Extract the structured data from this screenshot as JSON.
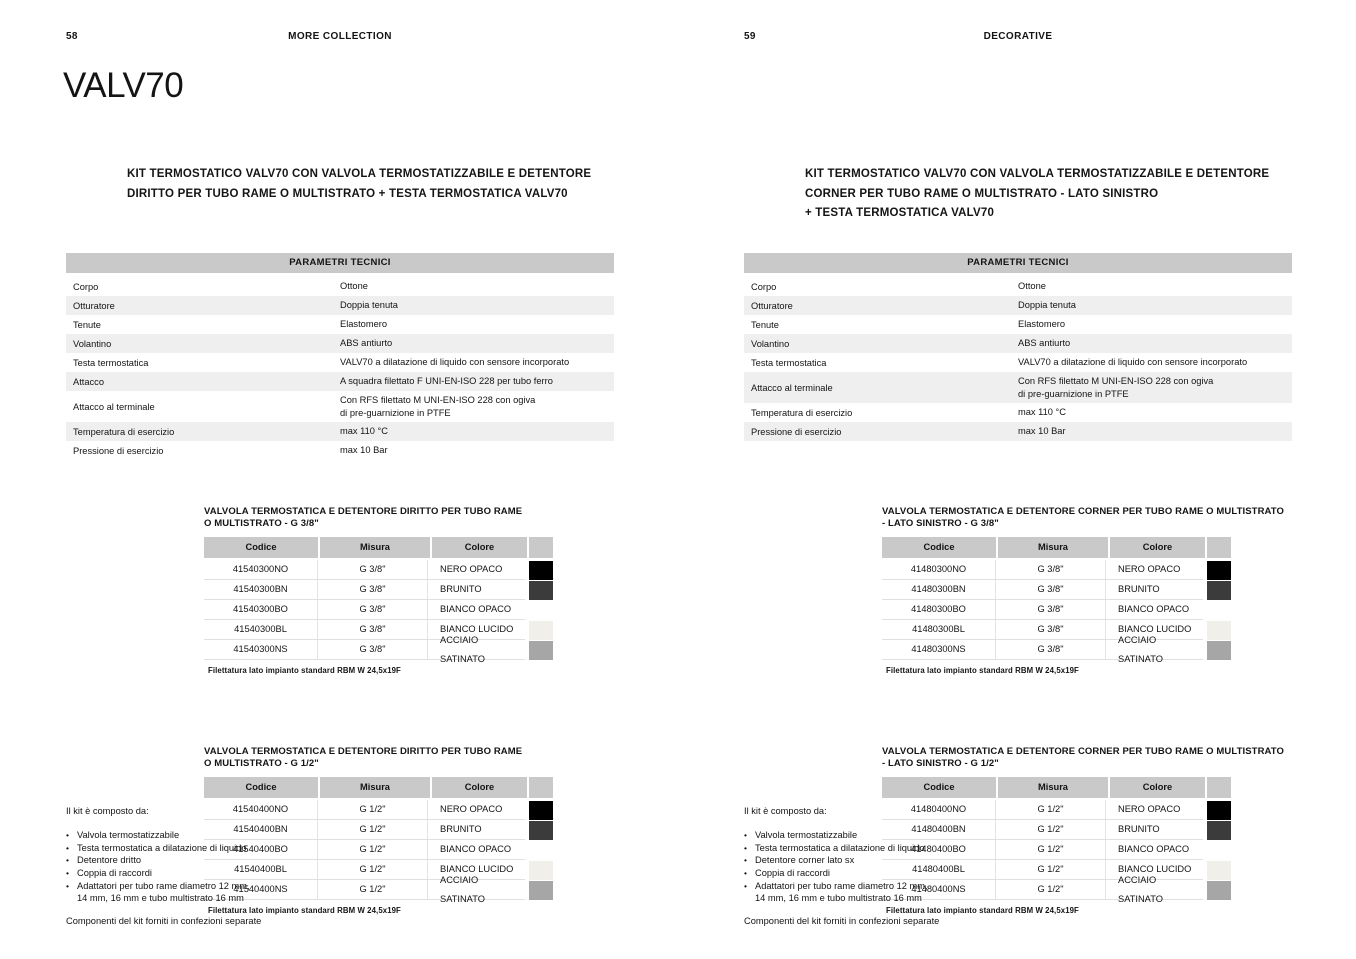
{
  "left": {
    "page_number": "58",
    "collection": "MORE COLLECTION",
    "brand_title": "VALV70",
    "heading": "KIT TERMOSTATICO VALV70 CON VALVOLA TERMOSTATIZZABILE E DETENTORE\nDIRITTO PER TUBO RAME O MULTISTRATO + TESTA TERMOSTATICA VALV70",
    "parameters": {
      "title": "PARAMETRI TECNICI",
      "rows": [
        {
          "label": "Corpo",
          "value": "Ottone"
        },
        {
          "label": "Otturatore",
          "value": "Doppia tenuta"
        },
        {
          "label": "Tenute",
          "value": "Elastomero"
        },
        {
          "label": "Volantino",
          "value": "ABS antiurto"
        },
        {
          "label": "Testa termostatica",
          "value": "VALV70 a dilatazione di liquido con sensore incorporato"
        },
        {
          "label": "Attacco",
          "value": "A squadra filettato F UNI-EN-ISO 228 per tubo ferro"
        },
        {
          "label": "Attacco al terminale",
          "value": "Con RFS filettato M UNI-EN-ISO 228 con ogiva\ndi pre-guarnizione in PTFE"
        },
        {
          "label": "Temperatura di esercizio",
          "value": "max 110 °C"
        },
        {
          "label": "Pressione di esercizio",
          "value": "max 10 Bar"
        }
      ]
    },
    "tables": [
      {
        "title": "VALVOLA TERMOSTATICA E DETENTORE DIRITTO PER TUBO RAME\nO MULTISTRATO - G 3/8\"",
        "columns": [
          "Codice",
          "Misura",
          "Colore"
        ],
        "rows": [
          {
            "codice": "41540300NO",
            "misura": "G 3/8\"",
            "colore": "NERO OPACO",
            "swatch": "#000000"
          },
          {
            "codice": "41540300BN",
            "misura": "G 3/8\"",
            "colore": "BRUNITO",
            "swatch": "#3b3b3b"
          },
          {
            "codice": "41540300BO",
            "misura": "G 3/8\"",
            "colore": "BIANCO OPACO",
            "swatch": "#ffffff"
          },
          {
            "codice": "41540300BL",
            "misura": "G 3/8\"",
            "colore": "BIANCO LUCIDO",
            "swatch": "#f1efe9"
          },
          {
            "codice": "41540300NS",
            "misura": "G 3/8\"",
            "colore": "ACCIAIO SATINATO",
            "swatch": "#a6a6a6"
          }
        ],
        "note": "Filettatura lato impianto standard RBM W 24,5x19F"
      },
      {
        "title": "VALVOLA TERMOSTATICA E DETENTORE DIRITTO PER TUBO RAME\nO MULTISTRATO - G 1/2\"",
        "columns": [
          "Codice",
          "Misura",
          "Colore"
        ],
        "rows": [
          {
            "codice": "41540400NO",
            "misura": "G 1/2\"",
            "colore": "NERO OPACO",
            "swatch": "#000000"
          },
          {
            "codice": "41540400BN",
            "misura": "G 1/2\"",
            "colore": "BRUNITO",
            "swatch": "#3b3b3b"
          },
          {
            "codice": "41540400BO",
            "misura": "G 1/2\"",
            "colore": "BIANCO OPACO",
            "swatch": "#ffffff"
          },
          {
            "codice": "41540400BL",
            "misura": "G 1/2\"",
            "colore": "BIANCO LUCIDO",
            "swatch": "#f1efe9"
          },
          {
            "codice": "41540400NS",
            "misura": "G 1/2\"",
            "colore": "ACCIAIO SATINATO",
            "swatch": "#a6a6a6"
          }
        ],
        "note": "Filettatura lato impianto standard RBM W 24,5x19F"
      }
    ],
    "kit": {
      "intro": "Il kit è composto da:",
      "items": [
        "Valvola termostatizzabile",
        "Testa termostatica a dilatazione di liquido",
        "Detentore dritto",
        "Coppia di raccordi",
        "Adattatori per tubo rame diametro 12 mm,\n14 mm, 16 mm e tubo multistrato 16 mm"
      ],
      "footer": "Componenti del kit forniti in confezioni separate"
    }
  },
  "right": {
    "page_number": "59",
    "collection": "DECORATIVE",
    "heading": "KIT TERMOSTATICO VALV70 CON VALVOLA TERMOSTATIZZABILE E DETENTORE\nCORNER PER TUBO RAME O MULTISTRATO - LATO SINISTRO\n+ TESTA TERMOSTATICA VALV70",
    "parameters": {
      "title": "PARAMETRI TECNICI",
      "rows": [
        {
          "label": "Corpo",
          "value": "Ottone"
        },
        {
          "label": "Otturatore",
          "value": "Doppia tenuta"
        },
        {
          "label": "Tenute",
          "value": "Elastomero"
        },
        {
          "label": "Volantino",
          "value": "ABS antiurto"
        },
        {
          "label": "Testa termostatica",
          "value": "VALV70 a dilatazione di liquido con sensore incorporato"
        },
        {
          "label": "Attacco al terminale",
          "value": "Con RFS filettato M UNI-EN-ISO 228 con ogiva\ndi pre-guarnizione in PTFE"
        },
        {
          "label": "Temperatura di esercizio",
          "value": "max 110 °C"
        },
        {
          "label": "Pressione di esercizio",
          "value": "max 10 Bar"
        }
      ]
    },
    "tables": [
      {
        "title": "VALVOLA TERMOSTATICA E DETENTORE CORNER PER TUBO RAME O MULTISTRATO\n- LATO SINISTRO - G 3/8\"",
        "columns": [
          "Codice",
          "Misura",
          "Colore"
        ],
        "rows": [
          {
            "codice": "41480300NO",
            "misura": "G 3/8\"",
            "colore": "NERO OPACO",
            "swatch": "#000000"
          },
          {
            "codice": "41480300BN",
            "misura": "G 3/8\"",
            "colore": "BRUNITO",
            "swatch": "#3b3b3b"
          },
          {
            "codice": "41480300BO",
            "misura": "G 3/8\"",
            "colore": "BIANCO OPACO",
            "swatch": "#ffffff"
          },
          {
            "codice": "41480300BL",
            "misura": "G 3/8\"",
            "colore": "BIANCO LUCIDO",
            "swatch": "#f1efe9"
          },
          {
            "codice": "41480300NS",
            "misura": "G 3/8\"",
            "colore": "ACCIAIO SATINATO",
            "swatch": "#a6a6a6"
          }
        ],
        "note": "Filettatura lato impianto standard RBM W 24,5x19F"
      },
      {
        "title": "VALVOLA TERMOSTATICA E DETENTORE CORNER PER TUBO RAME O MULTISTRATO\n- LATO SINISTRO - G 1/2\"",
        "columns": [
          "Codice",
          "Misura",
          "Colore"
        ],
        "rows": [
          {
            "codice": "41480400NO",
            "misura": "G 1/2\"",
            "colore": "NERO OPACO",
            "swatch": "#000000"
          },
          {
            "codice": "41480400BN",
            "misura": "G 1/2\"",
            "colore": "BRUNITO",
            "swatch": "#3b3b3b"
          },
          {
            "codice": "41480400BO",
            "misura": "G 1/2\"",
            "colore": "BIANCO OPACO",
            "swatch": "#ffffff"
          },
          {
            "codice": "41480400BL",
            "misura": "G 1/2\"",
            "colore": "BIANCO LUCIDO",
            "swatch": "#f1efe9"
          },
          {
            "codice": "41480400NS",
            "misura": "G 1/2\"",
            "colore": "ACCIAIO SATINATO",
            "swatch": "#a6a6a6"
          }
        ],
        "note": "Filettatura lato impianto standard RBM W 24,5x19F"
      }
    ],
    "kit": {
      "intro": "Il kit è composto da:",
      "items": [
        "Valvola termostatizzabile",
        "Testa termostatica a dilatazione di liquido",
        "Detentore corner lato sx",
        "Coppia di raccordi",
        "Adattatori per tubo rame diametro 12 mm,\n14 mm, 16 mm e tubo multistrato 16 mm"
      ],
      "footer": "Componenti del kit forniti in confezioni separate"
    }
  }
}
